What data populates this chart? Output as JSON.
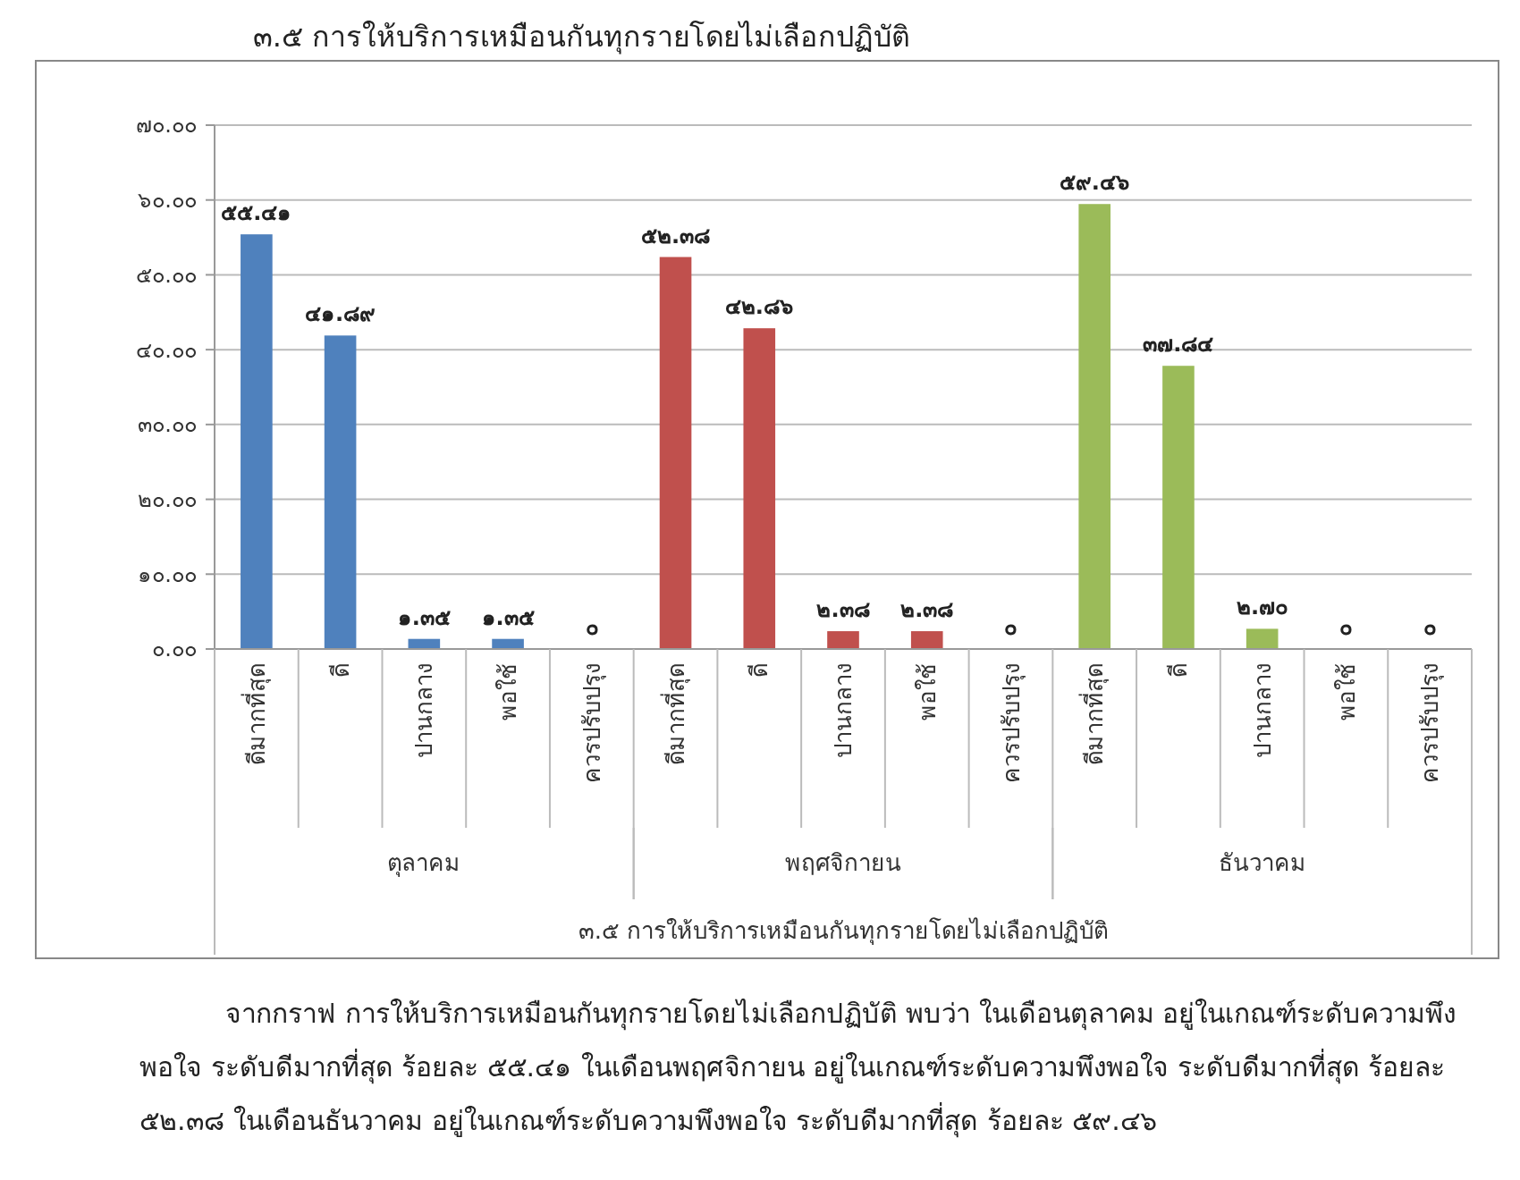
{
  "chart_data": {
    "type": "bar",
    "title": "๓.๕ การให้บริการเหมือนกันทุกรายโดยไม่เลือกปฏิบัติ",
    "categories": [
      "ดีมากที่สุด",
      "ดี",
      "ปานกลาง",
      "พอใช้",
      "ควรปรับปรุง",
      "ดีมากที่สุด",
      "ดี",
      "ปานกลาง",
      "พอใช้",
      "ควรปรับปรุง",
      "ดีมากที่สุด",
      "ดี",
      "ปานกลาง",
      "พอใช้",
      "ควรปรับปรุง"
    ],
    "series": [
      {
        "color": "#4f81bd",
        "values": [
          55.41,
          41.89,
          1.35,
          1.35,
          0,
          null,
          null,
          null,
          null,
          null,
          null,
          null,
          null,
          null,
          null
        ],
        "value_labels": [
          "๕๕.๔๑",
          "๔๑.๘๙",
          "๑.๓๕",
          "๑.๓๕",
          "๐",
          null,
          null,
          null,
          null,
          null,
          null,
          null,
          null,
          null,
          null
        ]
      },
      {
        "color": "#c0504d",
        "values": [
          null,
          null,
          null,
          null,
          null,
          52.38,
          42.86,
          2.38,
          2.38,
          0,
          null,
          null,
          null,
          null,
          null
        ],
        "value_labels": [
          null,
          null,
          null,
          null,
          null,
          "๕๒.๓๘",
          "๔๒.๘๖",
          "๒.๓๘",
          "๒.๓๘",
          "๐",
          null,
          null,
          null,
          null,
          null
        ]
      },
      {
        "color": "#9bbb59",
        "values": [
          null,
          null,
          null,
          null,
          null,
          null,
          null,
          null,
          null,
          null,
          59.46,
          37.84,
          2.7,
          0,
          0
        ],
        "value_labels": [
          null,
          null,
          null,
          null,
          null,
          null,
          null,
          null,
          null,
          null,
          "๕๙.๔๖",
          "๓๗.๘๔",
          "๒.๗๐",
          "๐",
          "๐"
        ]
      }
    ],
    "ylim": [
      0,
      70
    ],
    "yticks": [
      {
        "value": 0,
        "label": "๐.๐๐"
      },
      {
        "value": 10,
        "label": "๑๐.๐๐"
      },
      {
        "value": 20,
        "label": "๒๐.๐๐"
      },
      {
        "value": 30,
        "label": "๓๐.๐๐"
      },
      {
        "value": 40,
        "label": "๔๐.๐๐"
      },
      {
        "value": 50,
        "label": "๕๐.๐๐"
      },
      {
        "value": 60,
        "label": "๖๐.๐๐"
      },
      {
        "value": 70,
        "label": "๗๐.๐๐"
      }
    ],
    "grid": "y",
    "annotations": [
      "ตุลาคม",
      "พฤศจิกายน",
      "ธันวาคม",
      "๓.๕ การให้บริการเหมือนกันทุกรายโดยไม่เลือกปฏิบัติ",
      "จากกราฟ การให้บริการเหมือนกันทุกรายโดยไม่เลือกปฏิบัติ พบว่า ในเดือนตุลาคม อยู่ในเกณฑ์ระดับความพึงพอใจ ระดับดีมากที่สุด ร้อยละ ๕๕.๔๑  ในเดือนพฤศจิกายน อยู่ในเกณฑ์ระดับความพึงพอใจ ระดับดีมากที่สุด ร้อยละ ๕๒.๓๘  ในเดือนธันวาคม อยู่ในเกณฑ์ระดับความพึงพอใจ ระดับดีมากที่สุด ร้อยละ ๕๙.๔๖"
    ]
  }
}
